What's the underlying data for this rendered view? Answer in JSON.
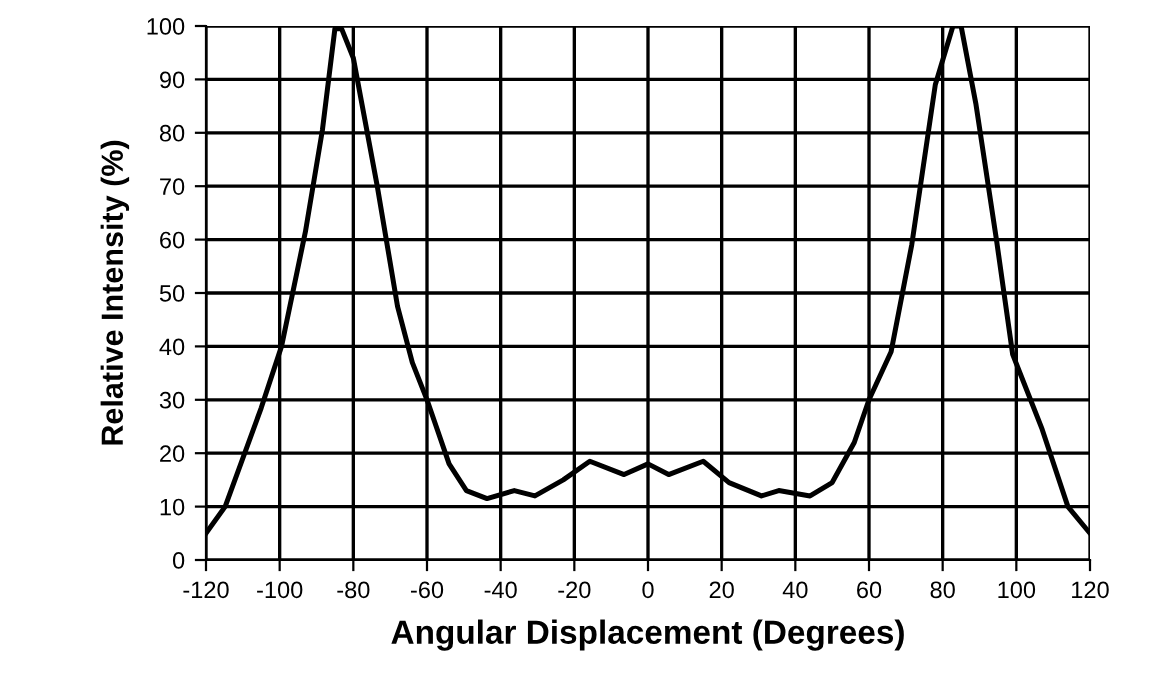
{
  "chart_data": {
    "type": "line",
    "xlabel": "Angular Displacement (Degrees)",
    "ylabel": "Relative Intensity (%)",
    "x": [
      -120,
      -114.8,
      -105,
      -99.5,
      -93,
      -88.4,
      -85,
      -83.2,
      -80,
      -73.5,
      -68,
      -64,
      -60,
      -54,
      -49.3,
      -43.7,
      -36.3,
      -30.7,
      -23,
      -15.8,
      -6.5,
      0,
      5.6,
      15,
      22,
      30.8,
      35.5,
      44,
      50,
      56,
      60,
      66,
      71.6,
      78,
      82.8,
      85,
      89,
      94.6,
      99,
      107,
      114,
      120
    ],
    "series": [
      {
        "color": "#000000",
        "values": [
          5,
          10,
          28.5,
          40,
          61.5,
          80.5,
          99.5,
          99.5,
          94,
          70,
          47.5,
          37,
          30,
          18,
          13,
          11.5,
          13,
          12,
          15,
          18.5,
          16,
          18,
          16,
          18.5,
          14.5,
          12,
          13,
          12,
          14.5,
          22,
          30,
          39,
          59,
          89,
          100,
          100,
          85.5,
          60,
          38.5,
          24.5,
          10,
          5
        ]
      }
    ],
    "xlim": [
      -120,
      120
    ],
    "xticks": [
      -120,
      -100,
      -80,
      -60,
      -40,
      -20,
      0,
      20,
      40,
      60,
      80,
      100,
      120
    ],
    "ylim": [
      0,
      100
    ],
    "yticks": [
      0,
      10,
      20,
      30,
      40,
      50,
      60,
      70,
      80,
      90,
      100
    ],
    "grid": true,
    "marker": "none",
    "line_style": "solid"
  }
}
